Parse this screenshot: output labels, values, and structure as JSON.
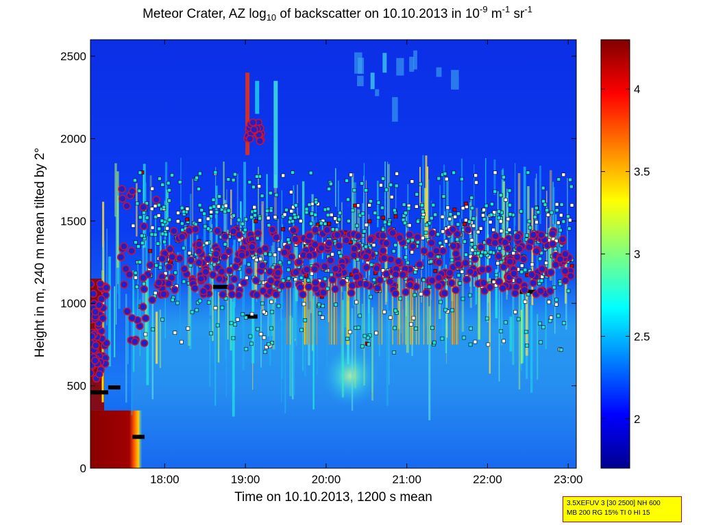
{
  "title": {
    "prefix": "Meteor Crater, AZ log",
    "sub": "10",
    "mid": " of backscatter on 10.10.2013 in 10",
    "sup1": "-9",
    "unit1": " m",
    "sup2": "-1",
    "unit2": " sr",
    "sup3": "-1"
  },
  "chart_data": {
    "type": "heatmap",
    "xlabel": "Time on 10.10.2013, 1200 s mean",
    "ylabel": "Height in m, 240 m mean tilted by 2°",
    "xlim_hours": [
      17.08,
      23.1
    ],
    "ylim": [
      0,
      2600
    ],
    "x_ticks": [
      18,
      19,
      20,
      21,
      22,
      23
    ],
    "x_tick_labels": [
      "18:00",
      "19:00",
      "20:00",
      "21:00",
      "22:00",
      "23:00"
    ],
    "y_ticks": [
      0,
      500,
      1000,
      1500,
      2000,
      2500
    ],
    "y_tick_labels": [
      "0",
      "500",
      "1000",
      "1500",
      "2000",
      "2500"
    ],
    "colorbar": {
      "colormap": "jet",
      "clim": [
        1.7,
        4.3
      ],
      "ticks": [
        2,
        2.5,
        3,
        3.5,
        4
      ],
      "tick_labels": [
        "2",
        "2.5",
        "3",
        "3.5",
        "4"
      ]
    },
    "marker_colors": {
      "cloud_base_circle_fill": "#2020c8",
      "cloud_base_circle_ring": "#d01030",
      "square_cyan": "#20e0e0",
      "square_white": "#ffffff",
      "square_red": "#cc0000",
      "mixing_layer": "#000000"
    },
    "mixing_layer_segments": [
      {
        "t0": 17.08,
        "t1": 17.3,
        "h": 460
      },
      {
        "t0": 17.3,
        "t1": 17.45,
        "h": 490
      },
      {
        "t0": 17.6,
        "t1": 17.75,
        "h": 190
      },
      {
        "t0": 18.6,
        "t1": 18.85,
        "h": 1100
      },
      {
        "t0": 19.0,
        "t1": 19.15,
        "h": 920
      },
      {
        "t0": 21.0,
        "t1": 21.12,
        "h": 1110
      },
      {
        "t0": 22.4,
        "t1": 22.6,
        "h": 1070
      }
    ]
  },
  "info_box": {
    "line1": "3.5XEFUV 3 [30 2500] NH 600",
    "line2": "MB 200 RG 15% TI 0 HI 15"
  }
}
